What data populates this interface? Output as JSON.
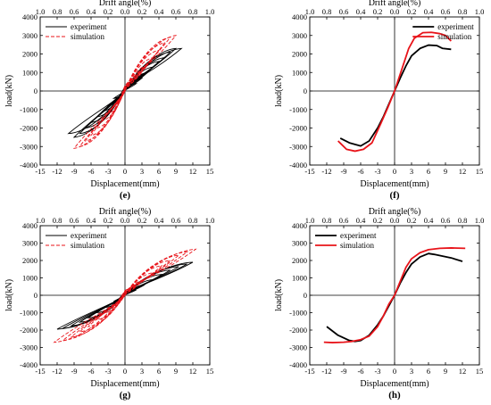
{
  "chart_data": [
    {
      "panel": "(e)",
      "type": "line",
      "kind": "hysteresis",
      "xlabel": "Displacement(mm)",
      "ylabel": "load(kN)",
      "top_label": "Drift angle(%)",
      "xlim": [
        -15,
        15
      ],
      "ylim": [
        -4000,
        4000
      ],
      "xticks": [
        -15,
        -12,
        -9,
        -6,
        -3,
        0,
        3,
        6,
        9,
        12,
        15
      ],
      "yticks": [
        -4000,
        -3000,
        -2000,
        -1000,
        0,
        1000,
        2000,
        3000,
        4000
      ],
      "top_ticks": [
        "1.0",
        "0.8",
        "0.6",
        "0.4",
        "0.2",
        "0.0",
        "0.2",
        "0.4",
        "0.6",
        "0.8",
        "1.0"
      ],
      "legend": {
        "position": "top-left",
        "entries": [
          "experiment",
          "simulation"
        ]
      },
      "series": [
        {
          "name": "experiment",
          "color": "#000000",
          "dash": "solid",
          "cycles": [
            [
              2,
              400,
              -2,
              -400
            ],
            [
              3,
              700,
              -3,
              -800
            ],
            [
              4,
              1000,
              -4,
              -1100
            ],
            [
              5,
              1300,
              -5,
              -1400
            ],
            [
              6,
              1600,
              -6,
              -1700
            ],
            [
              7,
              1800,
              -7,
              -2000
            ],
            [
              8,
              2100,
              -8,
              -2300
            ],
            [
              9,
              2300,
              -9,
              -2500
            ],
            [
              10,
              2300,
              -10,
              -2300
            ]
          ]
        },
        {
          "name": "simulation",
          "color": "#e8141a",
          "dash": "dashed",
          "cycles": [
            [
              2,
              700,
              -2,
              -800
            ],
            [
              3,
              1000,
              -3,
              -1200
            ],
            [
              4,
              1400,
              -4,
              -1600
            ],
            [
              5,
              1800,
              -5,
              -2000
            ],
            [
              6,
              2200,
              -6,
              -2400
            ],
            [
              7,
              2600,
              -7,
              -2700
            ],
            [
              8,
              2900,
              -8,
              -3000
            ],
            [
              9,
              3000,
              -9,
              -3100
            ]
          ]
        }
      ]
    },
    {
      "panel": "(f)",
      "type": "line",
      "kind": "skeleton",
      "xlabel": "Displacement(mm)",
      "ylabel": "load(kN)",
      "top_label": "Drift angle(%)",
      "xlim": [
        -15,
        15
      ],
      "ylim": [
        -4000,
        4000
      ],
      "xticks": [
        -15,
        -12,
        -9,
        -6,
        -3,
        0,
        3,
        6,
        9,
        12,
        15
      ],
      "yticks": [
        -4000,
        -3000,
        -2000,
        -1000,
        0,
        1000,
        2000,
        3000,
        4000
      ],
      "top_ticks": [
        "1.0",
        "0.8",
        "0.6",
        "0.4",
        "0.2",
        "0.0",
        "0.2",
        "0.4",
        "0.6",
        "0.8",
        "1.0"
      ],
      "legend": {
        "position": "top-right",
        "entries": [
          "experiment",
          "simulation"
        ]
      },
      "series": [
        {
          "name": "experiment",
          "color": "#000000",
          "x": [
            -9.6,
            -8,
            -6,
            -4.5,
            -3,
            -2,
            -1,
            0,
            1,
            2,
            3,
            4.5,
            6,
            7.5,
            8.5,
            10
          ],
          "y": [
            -2550,
            -2800,
            -2970,
            -2700,
            -2000,
            -1400,
            -700,
            0,
            700,
            1350,
            1900,
            2300,
            2480,
            2450,
            2300,
            2250
          ]
        },
        {
          "name": "simulation",
          "color": "#e8141a",
          "x": [
            -10,
            -8.5,
            -7,
            -5.5,
            -4,
            -2.5,
            -1.2,
            0,
            1.2,
            2.5,
            3.5,
            5,
            6.5,
            8,
            9,
            10
          ],
          "y": [
            -2700,
            -3150,
            -3250,
            -3150,
            -2800,
            -1800,
            -900,
            0,
            1100,
            2300,
            2850,
            3150,
            3170,
            3100,
            3000,
            2700
          ]
        }
      ]
    },
    {
      "panel": "(g)",
      "type": "line",
      "kind": "hysteresis",
      "xlabel": "Displacement(mm)",
      "ylabel": "load(kN)",
      "top_label": "Drift angle(%)",
      "xlim": [
        -15,
        15
      ],
      "ylim": [
        -4000,
        4000
      ],
      "xticks": [
        -15,
        -12,
        -9,
        -6,
        -3,
        0,
        3,
        6,
        9,
        12,
        15
      ],
      "yticks": [
        -4000,
        -3000,
        -2000,
        -1000,
        0,
        1000,
        2000,
        3000,
        4000
      ],
      "top_ticks": [
        "1.0",
        "0.8",
        "0.6",
        "0.4",
        "0.2",
        "0.0",
        "0.2",
        "0.4",
        "0.6",
        "0.8",
        "1.0"
      ],
      "legend": {
        "position": "top-left",
        "entries": [
          "experiment",
          "simulation"
        ]
      },
      "series": [
        {
          "name": "experiment",
          "color": "#000000",
          "dash": "solid",
          "cycles": [
            [
              2,
              300,
              -2,
              -350
            ],
            [
              3.5,
              600,
              -3.5,
              -700
            ],
            [
              5,
              900,
              -5,
              -1000
            ],
            [
              6.5,
              1200,
              -6.5,
              -1300
            ],
            [
              8,
              1450,
              -8,
              -1550
            ],
            [
              9.5,
              1650,
              -9.5,
              -1750
            ],
            [
              11,
              1800,
              -11,
              -1900
            ],
            [
              12,
              1900,
              -12,
              -1950
            ]
          ]
        },
        {
          "name": "simulation",
          "color": "#e8141a",
          "dash": "dashed",
          "cycles": [
            [
              2,
              500,
              -2,
              -600
            ],
            [
              3.5,
              900,
              -3.5,
              -1000
            ],
            [
              5,
              1300,
              -5,
              -1400
            ],
            [
              6.5,
              1700,
              -6.5,
              -1800
            ],
            [
              8,
              2000,
              -8,
              -2100
            ],
            [
              9.5,
              2300,
              -9.5,
              -2400
            ],
            [
              11,
              2500,
              -11,
              -2600
            ],
            [
              12.5,
              2650,
              -12.5,
              -2700
            ]
          ]
        }
      ]
    },
    {
      "panel": "(h)",
      "type": "line",
      "kind": "skeleton",
      "xlabel": "Displacement(mm)",
      "ylabel": "load(kN)",
      "top_label": "Drift angle(%)",
      "xlim": [
        -15,
        15
      ],
      "ylim": [
        -4000,
        4000
      ],
      "xticks": [
        -15,
        -12,
        -9,
        -6,
        -3,
        0,
        3,
        6,
        9,
        12,
        15
      ],
      "yticks": [
        -4000,
        -3000,
        -2000,
        -1000,
        0,
        1000,
        2000,
        3000,
        4000
      ],
      "top_ticks": [
        "1.0",
        "0.8",
        "0.6",
        "0.4",
        "0.2",
        "0.0",
        "0.2",
        "0.4",
        "0.6",
        "0.8",
        "1.0"
      ],
      "legend": {
        "position": "top-left",
        "entries": [
          "experiment",
          "simulation"
        ]
      },
      "series": [
        {
          "name": "experiment",
          "color": "#000000",
          "x": [
            -12,
            -10,
            -8,
            -7,
            -6,
            -4.5,
            -3,
            -2,
            -1,
            0,
            1,
            2,
            3,
            4.5,
            6,
            7,
            8.5,
            10,
            12
          ],
          "y": [
            -1800,
            -2300,
            -2600,
            -2650,
            -2600,
            -2300,
            -1700,
            -1200,
            -600,
            0,
            700,
            1300,
            1800,
            2200,
            2400,
            2350,
            2250,
            2150,
            1950
          ]
        },
        {
          "name": "simulation",
          "color": "#e8141a",
          "x": [
            -12.5,
            -11,
            -9,
            -7.5,
            -6,
            -4.5,
            -3,
            -2,
            -1,
            0,
            1,
            2,
            3,
            4.5,
            6,
            8,
            10,
            12.5
          ],
          "y": [
            -2700,
            -2720,
            -2700,
            -2650,
            -2550,
            -2350,
            -1800,
            -1200,
            -500,
            0,
            800,
            1600,
            2100,
            2450,
            2620,
            2700,
            2720,
            2700
          ]
        }
      ]
    }
  ]
}
